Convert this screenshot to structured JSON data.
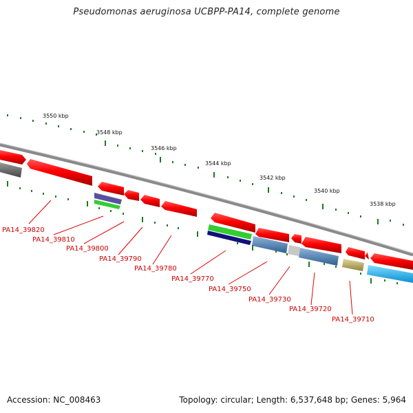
{
  "title": "Pseudomonas aeruginosa UCBPP-PA14, complete genome",
  "footer": {
    "accession": "Accession: NC_008463",
    "summary": "Topology: circular; Length: 6,537,648 bp; Genes: 5,964"
  },
  "ruler_labels": [
    "3550 kbp",
    "3548 kbp",
    "3546 kbp",
    "3544 kbp",
    "3542 kbp",
    "3540 kbp",
    "3538 kbp"
  ],
  "gene_labels": [
    "PA14_39820",
    "PA14_39810",
    "PA14_39800",
    "PA14_39790",
    "PA14_39780",
    "PA14_39770",
    "PA14_39750",
    "PA14_39730",
    "PA14_39720",
    "PA14_39710"
  ],
  "colors": {
    "backbone": "#8c8c8c",
    "gene_red": "#ff0000",
    "tick_green": "#1a7a1a",
    "label_red": "#cc0000",
    "cog_gray": "#6b6b6b",
    "cog_purple": "#5a4fa0",
    "cog_green": "#33cc33",
    "cog_navy": "#10107a",
    "cog_steel": "#4f7fb3",
    "cog_light_gray": "#c8c8c8",
    "cog_olive": "#b8ae66",
    "cog_cyan": "#1aaaee"
  }
}
